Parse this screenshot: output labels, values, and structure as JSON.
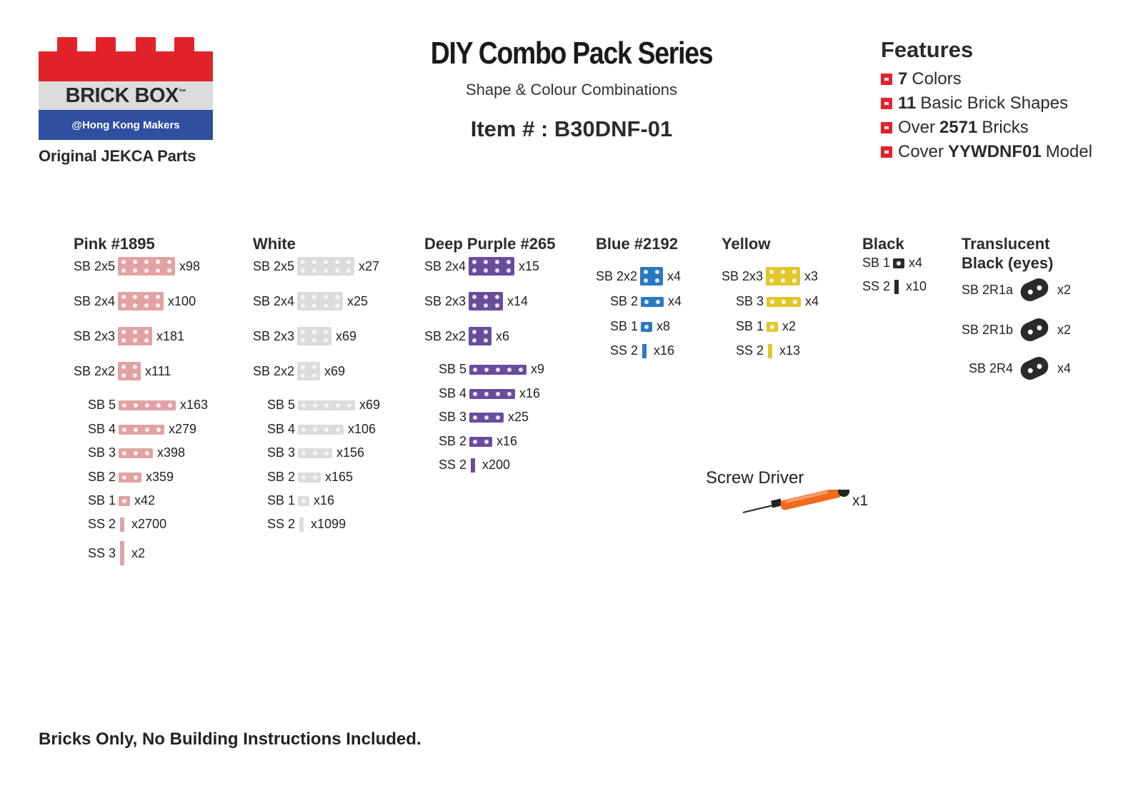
{
  "logo": {
    "brand": "BRICK BOX",
    "tm": "™",
    "tagline": "@Hong Kong Makers",
    "sub": "Original JEKCA Parts"
  },
  "header": {
    "title": "DIY Combo Pack Series",
    "subtitle": "Shape & Colour Combinations",
    "item_no": "Item # : B30DNF-01"
  },
  "features": {
    "title": "Features",
    "items": [
      {
        "bold": "7",
        "text": "Colors",
        "pre": "",
        "post": ""
      },
      {
        "bold": "11",
        "text": "Basic Brick Shapes",
        "pre": "",
        "post": ""
      },
      {
        "pre": "Over",
        "bold": "2571",
        "text": "Bricks",
        "post": ""
      },
      {
        "pre": "Cover",
        "bold": "YYWDNF01",
        "text": "Model",
        "post": ""
      }
    ]
  },
  "colors": {
    "pink": "#e1a2a3",
    "white": "#dcdcdc",
    "purple": "#6a4c9c",
    "blue": "#2b78c2",
    "yellow": "#e3c62a",
    "black": "#2b2b2b",
    "accent": "#e3232c",
    "logo_blue": "#2f4fa0"
  },
  "columns": [
    {
      "title": "Pink #1895",
      "color": "pink",
      "rows": [
        {
          "label": "SB 2x5",
          "qty": "x98"
        },
        {
          "label": "SB 2x4",
          "qty": "x100"
        },
        {
          "label": "SB 2x3",
          "qty": "x181"
        },
        {
          "label": "SB 2x2",
          "qty": "x111"
        },
        {
          "label": "SB 5",
          "qty": "x163"
        },
        {
          "label": "SB 4",
          "qty": "x279"
        },
        {
          "label": "SB 3",
          "qty": "x398"
        },
        {
          "label": "SB 2",
          "qty": "x359"
        },
        {
          "label": "SB 1",
          "qty": "x42"
        },
        {
          "label": "SS 2",
          "qty": "x2700"
        },
        {
          "label": "SS 3",
          "qty": "x2"
        }
      ]
    },
    {
      "title": "White",
      "color": "white",
      "rows": [
        {
          "label": "SB 2x5",
          "qty": "x27"
        },
        {
          "label": "SB 2x4",
          "qty": "x25"
        },
        {
          "label": "SB 2x3",
          "qty": "x69"
        },
        {
          "label": "SB 2x2",
          "qty": "x69"
        },
        {
          "label": "SB 5",
          "qty": "x69"
        },
        {
          "label": "SB 4",
          "qty": "x106"
        },
        {
          "label": "SB 3",
          "qty": "x156"
        },
        {
          "label": "SB 2",
          "qty": "x165"
        },
        {
          "label": "SB 1",
          "qty": "x16"
        },
        {
          "label": "SS 2",
          "qty": "x1099"
        }
      ]
    },
    {
      "title": "Deep Purple #265",
      "color": "purple",
      "rows": [
        {
          "label": "SB 2x4",
          "qty": "x15"
        },
        {
          "label": "SB 2x3",
          "qty": "x14"
        },
        {
          "label": "SB 2x2",
          "qty": "x6"
        },
        {
          "label": "SB 5",
          "qty": "x9"
        },
        {
          "label": "SB 4",
          "qty": "x16"
        },
        {
          "label": "SB 3",
          "qty": "x25"
        },
        {
          "label": "SB 2",
          "qty": "x16"
        },
        {
          "label": "SS 2",
          "qty": "x200"
        }
      ]
    },
    {
      "title": "Blue #2192",
      "color": "blue",
      "rows": [
        {
          "label": "SB 2x2",
          "qty": "x4"
        },
        {
          "label": "SB 2",
          "qty": "x4"
        },
        {
          "label": "SB 1",
          "qty": "x8"
        },
        {
          "label": "SS 2",
          "qty": "x16"
        }
      ]
    },
    {
      "title": "Yellow",
      "color": "yellow",
      "rows": [
        {
          "label": "SB 2x3",
          "qty": "x3"
        },
        {
          "label": "SB 3",
          "qty": "x4"
        },
        {
          "label": "SB 1",
          "qty": "x2"
        },
        {
          "label": "SS 2",
          "qty": "x13"
        }
      ]
    },
    {
      "title": "Black",
      "color": "black",
      "rows": [
        {
          "label": "SB 1",
          "qty": "x4"
        },
        {
          "label": "SS 2",
          "qty": "x10"
        }
      ]
    },
    {
      "title": "Translucent Black (eyes)",
      "color": "black",
      "rows": [
        {
          "label": "SB 2R1a",
          "qty": "x2"
        },
        {
          "label": "SB 2R1b",
          "qty": "x2"
        },
        {
          "label": "SB 2R4",
          "qty": "x4"
        }
      ]
    }
  ],
  "screwdriver": {
    "label": "Screw Driver",
    "qty": "x1"
  },
  "footer": "Bricks Only, No Building Instructions Included."
}
